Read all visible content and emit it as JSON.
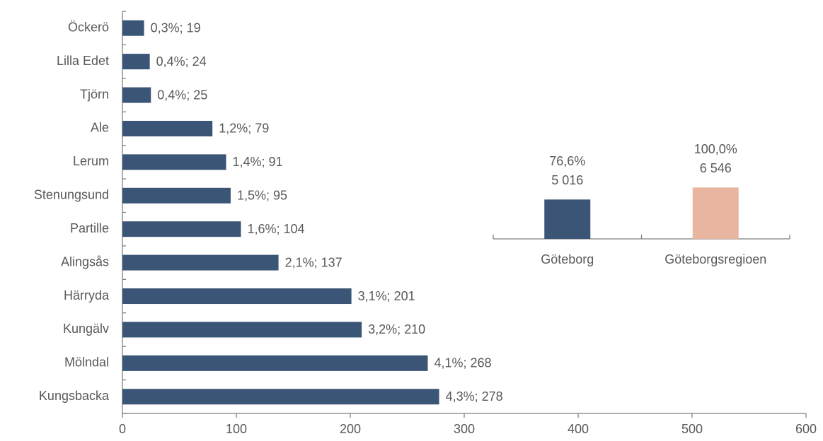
{
  "chart_data": [
    {
      "type": "hbar",
      "categories": [
        "Öckerö",
        "Lilla Edet",
        "Tjörn",
        "Ale",
        "Lerum",
        "Stenungsund",
        "Partille",
        "Alingsås",
        "Härryda",
        "Kungälv",
        "Mölndal",
        "Kungsbacka"
      ],
      "values": [
        19,
        24,
        25,
        79,
        91,
        95,
        104,
        137,
        201,
        210,
        268,
        278
      ],
      "value_labels": [
        "0,3%; 19",
        "0,4%; 24",
        "0,4%; 25",
        "1,2%; 79",
        "1,4%; 91",
        "1,5%; 95",
        "1,6%; 104",
        "2,1%; 137",
        "3,1%; 201",
        "3,2%; 210",
        "4,1%; 268",
        "4,3%; 278"
      ],
      "color": "#3a5575",
      "xlim": [
        0,
        600
      ],
      "xticks": [
        0,
        100,
        200,
        300,
        400,
        500,
        600
      ]
    },
    {
      "type": "bar",
      "categories": [
        "Göteborg",
        "Göteborgsregioen"
      ],
      "values": [
        5016,
        6546
      ],
      "value_labels": [
        [
          "76,6%",
          "5 016"
        ],
        [
          "100,0%",
          "6 546"
        ]
      ],
      "colors": [
        "#3a5575",
        "#e8b5a0"
      ]
    }
  ]
}
